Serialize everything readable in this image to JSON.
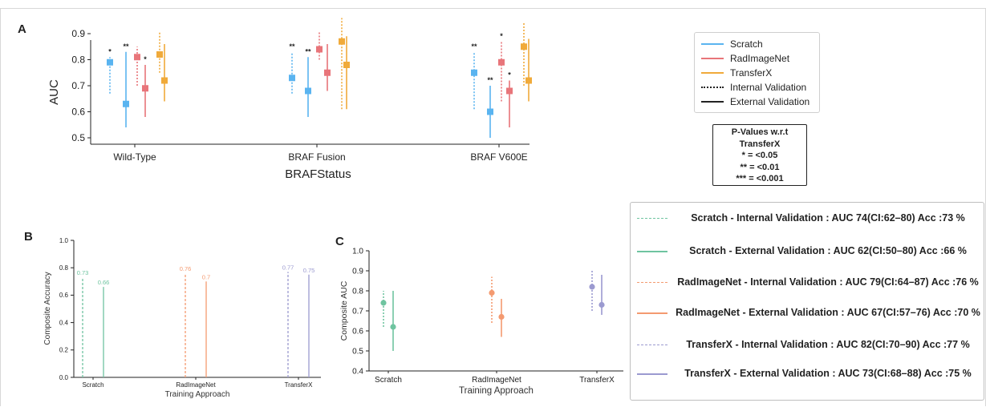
{
  "panels": {
    "a": "A",
    "b": "B",
    "c": "C"
  },
  "chart_data": [
    {
      "type": "scatter",
      "subtype": "errorbar",
      "panel": "A",
      "categories": [
        "Wild-Type",
        "BRAF Fusion",
        "BRAF V600E"
      ],
      "xlabel": "BRAFStatus",
      "ylabel": "AUC",
      "ylim": [
        0.5,
        0.9
      ],
      "yticks": [
        "0.5",
        "0.6",
        "0.7",
        "0.8",
        "0.9"
      ],
      "legend": [
        "Scratch",
        "RadImageNet",
        "TransferX",
        "Internal Validation",
        "External Validation"
      ],
      "legend_placement": "right",
      "colors": {
        "Scratch": "#5ab4f0",
        "RadImageNet": "#e8757a",
        "TransferX": "#f0aa3a"
      },
      "series": [
        {
          "name": "Scratch",
          "validation": "Internal Validation",
          "values": [
            0.79,
            0.73,
            0.75
          ],
          "low": [
            0.67,
            0.67,
            0.61
          ],
          "high": [
            0.81,
            0.83,
            0.83
          ],
          "sig": [
            "*",
            "**",
            "**"
          ]
        },
        {
          "name": "Scratch",
          "validation": "External Validation",
          "values": [
            0.63,
            0.68,
            0.6
          ],
          "low": [
            0.54,
            0.58,
            0.5
          ],
          "high": [
            0.83,
            0.81,
            0.7
          ],
          "sig": [
            "**",
            "**",
            "**"
          ]
        },
        {
          "name": "RadImageNet",
          "validation": "Internal Validation",
          "values": [
            0.81,
            0.84,
            0.79
          ],
          "low": [
            0.7,
            0.8,
            0.64
          ],
          "high": [
            0.85,
            0.91,
            0.87
          ],
          "sig": [
            "",
            "",
            "*"
          ]
        },
        {
          "name": "RadImageNet",
          "validation": "External Validation",
          "values": [
            0.69,
            0.75,
            0.68
          ],
          "low": [
            0.58,
            0.68,
            0.54
          ],
          "high": [
            0.78,
            0.86,
            0.72
          ],
          "sig": [
            "*",
            "",
            "*"
          ]
        },
        {
          "name": "TransferX",
          "validation": "Internal Validation",
          "values": [
            0.82,
            0.87,
            0.85
          ],
          "low": [
            0.75,
            0.61,
            0.7
          ],
          "high": [
            0.91,
            0.96,
            0.94
          ],
          "sig": [
            "",
            "",
            ""
          ]
        },
        {
          "name": "TransferX",
          "validation": "External Validation",
          "values": [
            0.72,
            0.78,
            0.72
          ],
          "low": [
            0.64,
            0.61,
            0.64
          ],
          "high": [
            0.86,
            0.89,
            0.88
          ],
          "sig": [
            "",
            "",
            ""
          ]
        }
      ],
      "pvalue_box": [
        "P-Values w.r.t",
        "TransferX",
        "* = <0.05",
        "** = <0.01",
        "*** = <0.001"
      ]
    },
    {
      "type": "bar",
      "subtype": "stem",
      "panel": "B",
      "categories": [
        "Scratch",
        "RadImageNet",
        "TransferX"
      ],
      "xlabel": "Training Approach",
      "ylabel": "Composite Accuracy",
      "ylim": [
        0.0,
        1.0
      ],
      "yticks": [
        "0.0",
        "0.2",
        "0.4",
        "0.6",
        "0.8",
        "1.0"
      ],
      "series": [
        {
          "name": "Internal Validation",
          "values": [
            0.73,
            0.76,
            0.77
          ],
          "labels": [
            "0.73",
            "0.76",
            "0.77"
          ]
        },
        {
          "name": "External Validation",
          "values": [
            0.66,
            0.7,
            0.75
          ],
          "labels": [
            "0.66",
            "0.7",
            "0.75"
          ]
        }
      ],
      "colors": {
        "Scratch": "#6fc4a0",
        "RadImageNet": "#f49a70",
        "TransferX": "#9b9ad0"
      }
    },
    {
      "type": "scatter",
      "subtype": "errorbar",
      "panel": "C",
      "categories": [
        "Scratch",
        "RadImageNet",
        "TransferX"
      ],
      "xlabel": "Training Approach",
      "ylabel": "Composite AUC",
      "ylim": [
        0.4,
        1.0
      ],
      "yticks": [
        "0.4",
        "0.5",
        "0.6",
        "0.7",
        "0.8",
        "0.9",
        "1.0"
      ],
      "series": [
        {
          "name": "Internal Validation",
          "values": [
            0.74,
            0.79,
            0.82
          ],
          "low": [
            0.62,
            0.64,
            0.7
          ],
          "high": [
            0.8,
            0.87,
            0.9
          ]
        },
        {
          "name": "External Validation",
          "values": [
            0.62,
            0.67,
            0.73
          ],
          "low": [
            0.5,
            0.57,
            0.68
          ],
          "high": [
            0.8,
            0.76,
            0.88
          ]
        }
      ],
      "colors": {
        "Scratch": "#6fc4a0",
        "RadImageNet": "#f49a70",
        "TransferX": "#9b9ad0"
      },
      "legend": [
        {
          "name": "Scratch - Internal Validation",
          "stats": "AUC 74(CI:62–80) Acc :73 %",
          "style": "dashed",
          "color": "#6fc4a0"
        },
        {
          "name": "Scratch - External Validation",
          "stats": "AUC 62(CI:50–80) Acc :66 %",
          "style": "solid",
          "color": "#6fc4a0"
        },
        {
          "name": "RadImageNet - Internal Validation",
          "stats": "AUC 79(CI:64–87) Acc :76 %",
          "style": "dashed",
          "color": "#f49a70"
        },
        {
          "name": "RadImageNet - External Validation",
          "stats": "AUC 67(CI:57–76) Acc :70 %",
          "style": "solid",
          "color": "#f49a70"
        },
        {
          "name": "TransferX - Internal Validation",
          "stats": "AUC 82(CI:70–90) Acc :77 %",
          "style": "dashed",
          "color": "#9b9ad0"
        },
        {
          "name": "TransferX - External Validation",
          "stats": "AUC 73(CI:68–88) Acc :75 %",
          "style": "solid",
          "color": "#9b9ad0"
        }
      ]
    }
  ]
}
